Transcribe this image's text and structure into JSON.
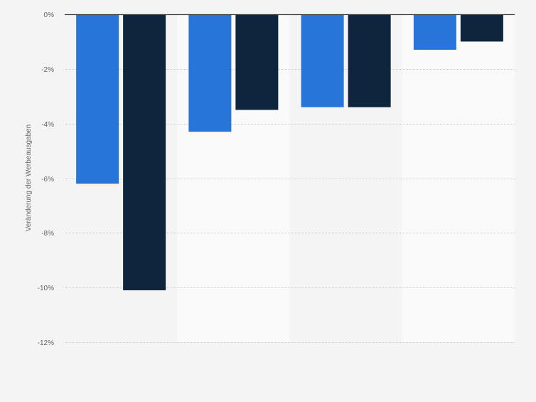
{
  "chart_data": {
    "type": "bar",
    "title": "",
    "xlabel": "",
    "ylabel": "Veränderung der Werbeausgaben",
    "categories": [
      "",
      "",
      "",
      ""
    ],
    "series": [
      {
        "values": [
          -6.2,
          -4.3,
          -3.4,
          -1.3
        ]
      },
      {
        "values": [
          -10.1,
          -3.5,
          -3.4,
          -1.0
        ]
      }
    ],
    "ylim": [
      -12,
      0
    ],
    "y_ticks": [
      {
        "value": 0,
        "label": "0%"
      },
      {
        "value": -2,
        "label": "-2%"
      },
      {
        "value": -4,
        "label": "-4%"
      },
      {
        "value": -6,
        "label": "-6%"
      },
      {
        "value": -8,
        "label": "-8%"
      },
      {
        "value": -10,
        "label": "-10%"
      },
      {
        "value": -12,
        "label": "-12%"
      }
    ],
    "grid": true,
    "legend": "none"
  },
  "colors": {
    "background": "#f4f4f4",
    "band_alt": "#fafafa",
    "series": [
      "#2775d9",
      "#0f253d"
    ],
    "grid": "#cccccc",
    "zero_line": "#444444"
  }
}
